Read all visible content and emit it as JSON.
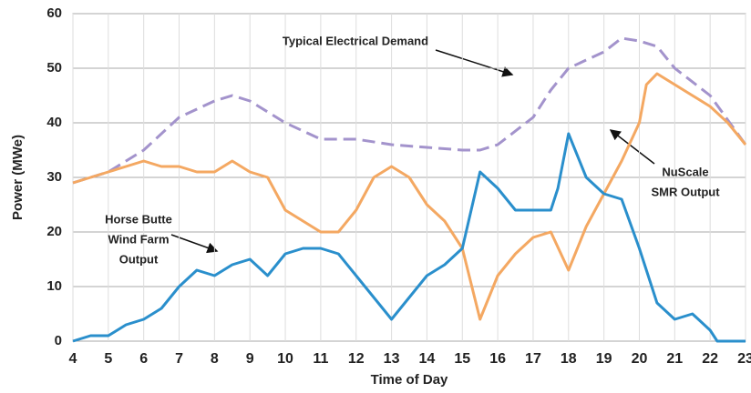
{
  "chart_data": {
    "type": "line",
    "xlabel": "Time of Day",
    "ylabel": "Power (MWe)",
    "xlim": [
      4,
      23
    ],
    "xticks": [
      4,
      5,
      6,
      7,
      8,
      9,
      10,
      11,
      12,
      13,
      14,
      15,
      16,
      17,
      18,
      19,
      20,
      21,
      22,
      23
    ],
    "ylim": [
      0,
      60
    ],
    "yticks": [
      0,
      10,
      20,
      30,
      40,
      50,
      60
    ],
    "grid": true,
    "series": [
      {
        "color": "#a393cc",
        "dash": true,
        "x": [
          4,
          5,
          6,
          7,
          8,
          8.5,
          9,
          10,
          11,
          12,
          13,
          14,
          15,
          15.5,
          16,
          17,
          17.5,
          18,
          19,
          19.5,
          20,
          20.5,
          21,
          22,
          23
        ],
        "values": [
          29,
          31,
          35,
          41,
          44,
          45,
          44,
          40,
          37,
          37,
          36,
          35.5,
          35,
          35,
          36,
          41,
          46,
          50,
          53,
          55.5,
          55,
          54,
          50,
          45,
          36
        ]
      },
      {
        "color": "#f4a862",
        "dash": false,
        "x": [
          4,
          5,
          5.5,
          6,
          6.5,
          7,
          7.5,
          8,
          8.5,
          9,
          9.5,
          10,
          10.5,
          11,
          11.5,
          12,
          12.5,
          13,
          13.5,
          14,
          14.5,
          14.8,
          15,
          15.5,
          16,
          16.5,
          17,
          17.5,
          18,
          18.5,
          19,
          19.5,
          20,
          20.2,
          20.5,
          21,
          21.5,
          22,
          22.5,
          23
        ],
        "values": [
          29,
          31,
          32,
          33,
          32,
          32,
          31,
          31,
          33,
          31,
          30,
          24,
          22,
          20,
          20,
          24,
          30,
          32,
          30,
          25,
          22,
          19,
          17,
          4,
          12,
          16,
          19,
          20,
          13,
          21,
          27,
          33,
          40,
          47,
          49,
          47,
          45,
          43,
          40,
          36
        ]
      },
      {
        "color": "#2a8fcc",
        "dash": false,
        "x": [
          4,
          4.5,
          5,
          5.5,
          6,
          6.5,
          7,
          7.5,
          8,
          8.5,
          9,
          9.5,
          10,
          10.5,
          11,
          11.5,
          12,
          12.5,
          13,
          13.5,
          14,
          14.5,
          15,
          15.5,
          16,
          16.5,
          17,
          17.5,
          17.7,
          18,
          18.5,
          19,
          19.5,
          20,
          20.5,
          21,
          21.5,
          22,
          22.2,
          23
        ],
        "values": [
          0,
          1,
          1,
          3,
          4,
          6,
          10,
          13,
          12,
          14,
          15,
          12,
          16,
          17,
          17,
          16,
          12,
          8,
          4,
          8,
          12,
          14,
          17,
          31,
          28,
          24,
          24,
          24,
          28,
          38,
          30,
          27,
          26,
          17,
          7,
          4,
          5,
          2,
          0,
          0
        ]
      }
    ],
    "annotations": [
      {
        "lines": [
          "Typical Electrical Demand"
        ]
      },
      {
        "lines": [
          "NuScale",
          "SMR Output"
        ]
      },
      {
        "lines": [
          "Horse Butte",
          "Wind Farm",
          "Output"
        ]
      }
    ]
  }
}
